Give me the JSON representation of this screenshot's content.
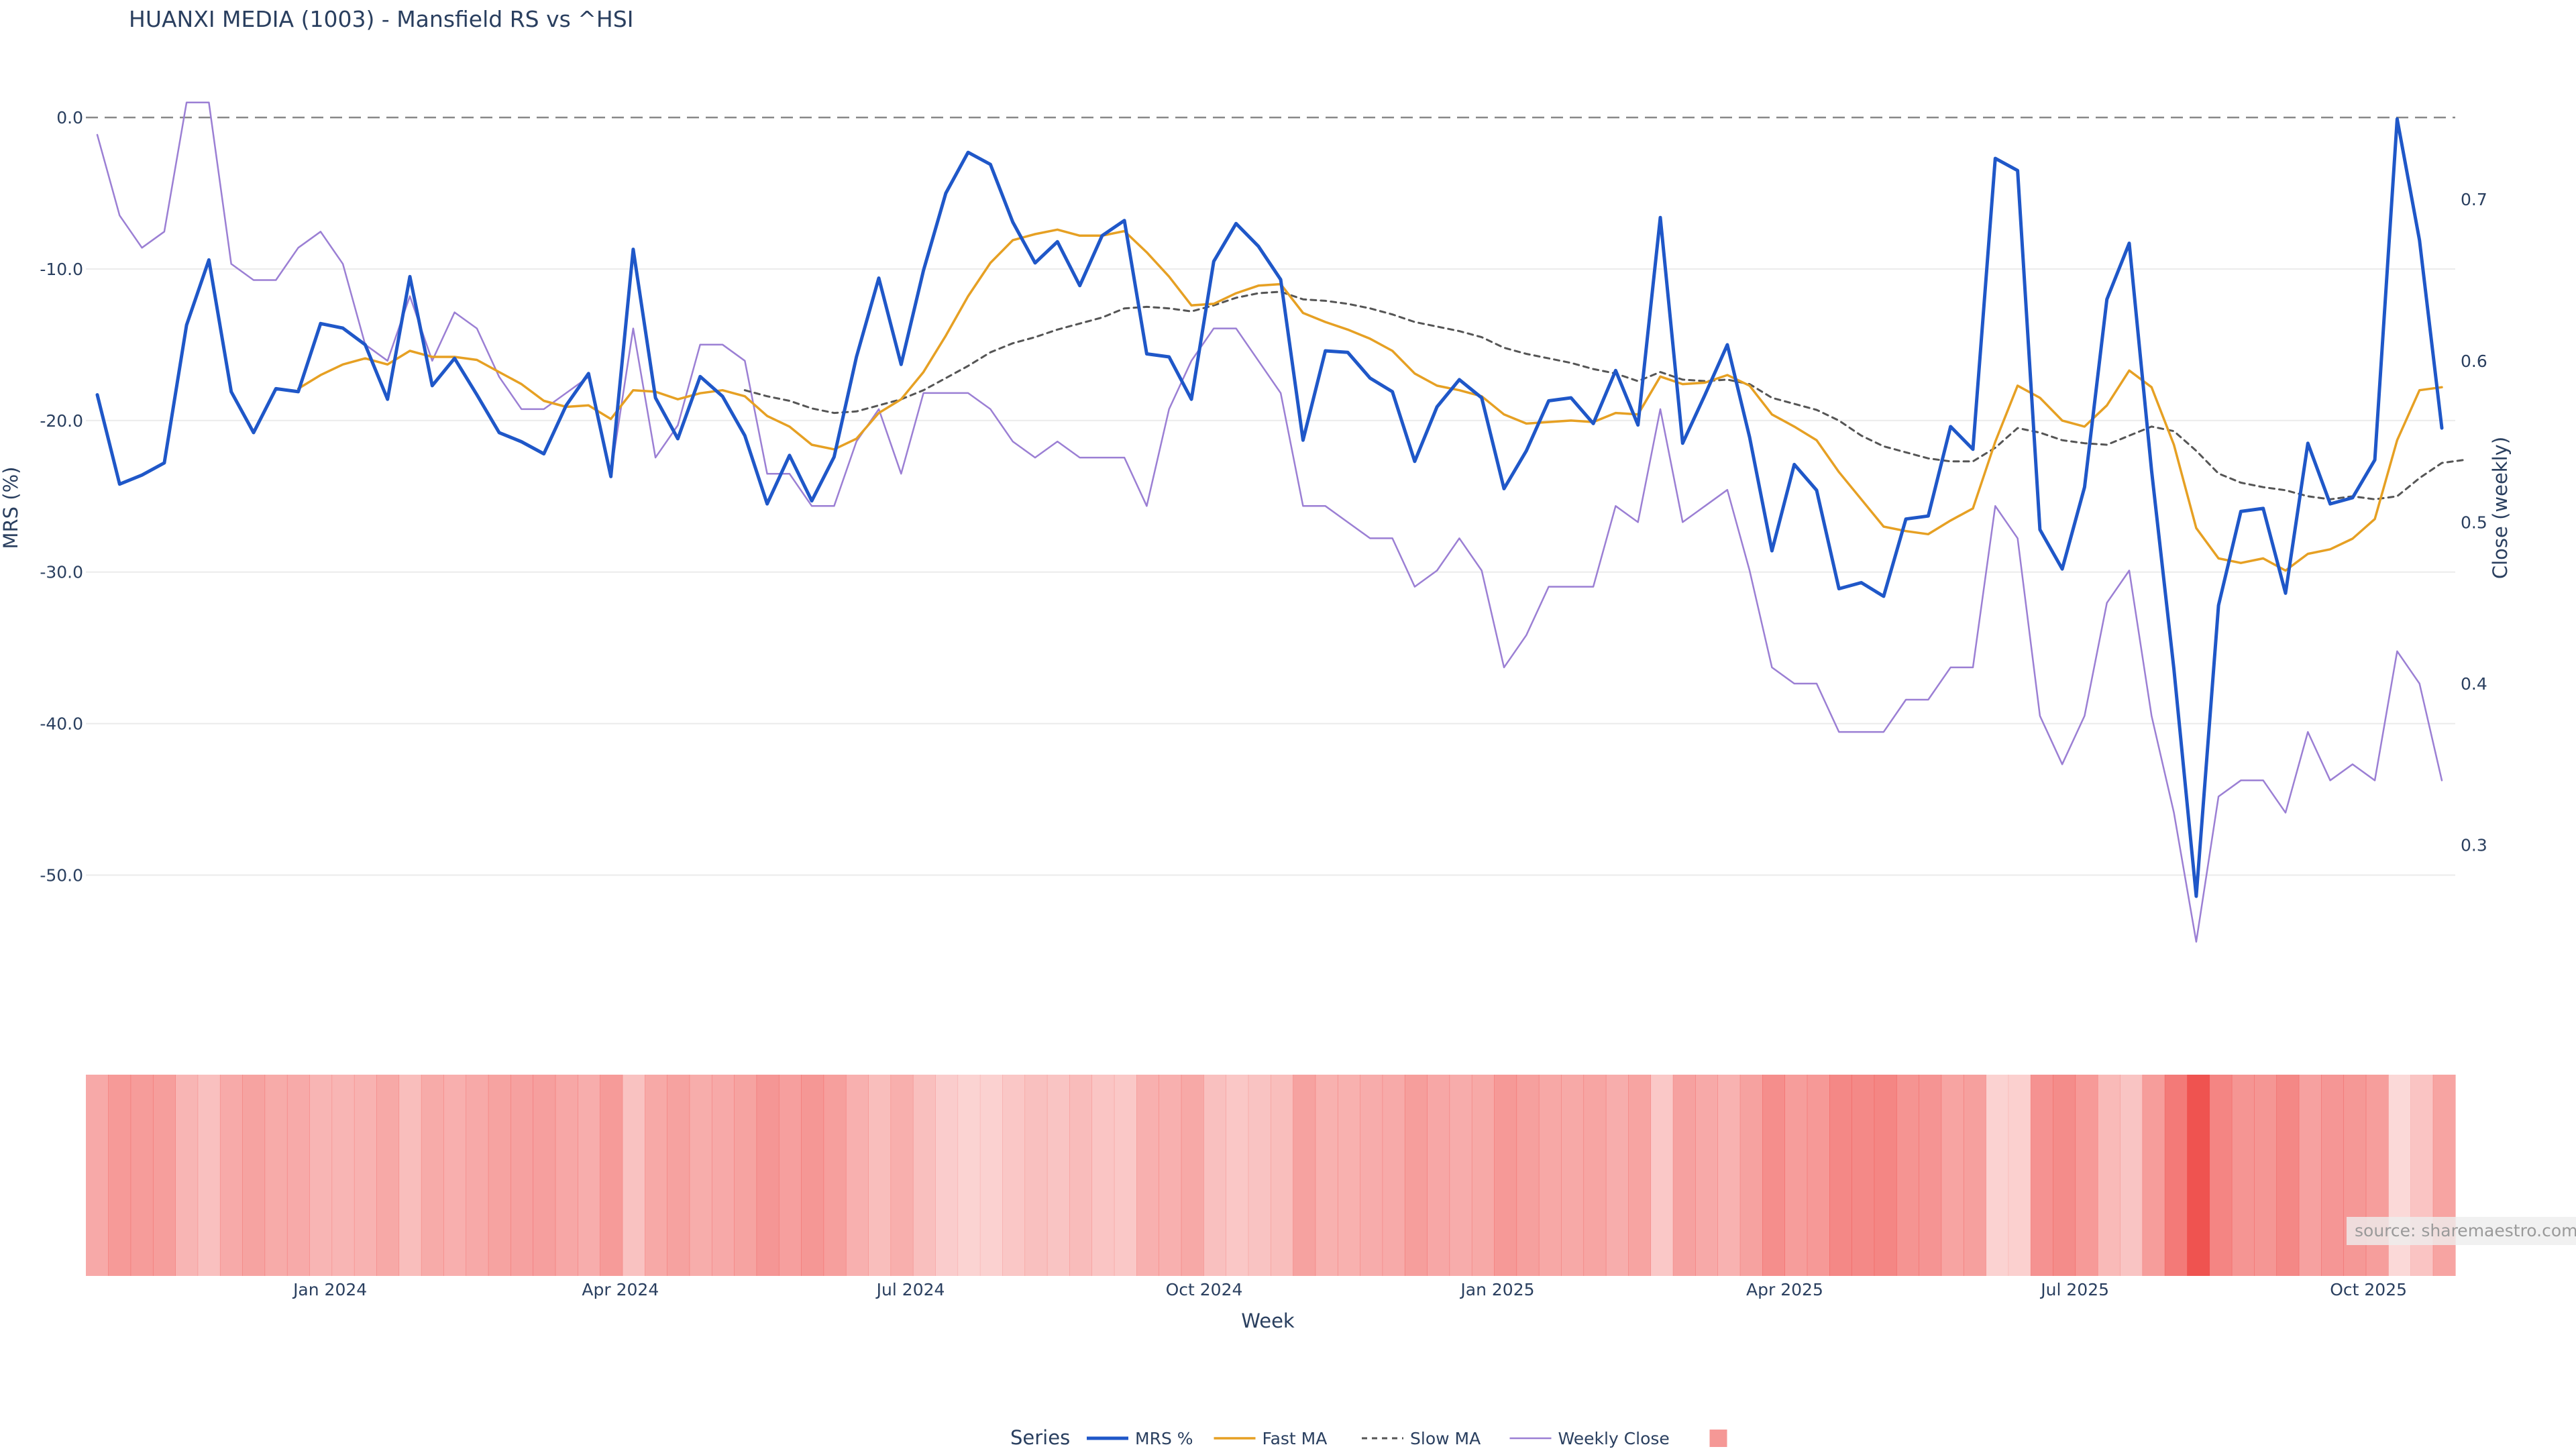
{
  "chart_data": {
    "type": "line",
    "title": "HUANXI MEDIA (1003) - Mansfield RS vs ^HSI",
    "xlabel": "Week",
    "ylabel_left": "MRS (%)",
    "ylabel_right": "Close (weekly)",
    "x_start": "2023-10-20",
    "x_tick_labels": [
      "Jan 2024",
      "Apr 2024",
      "Jul 2024",
      "Oct 2024",
      "Jan 2025",
      "Apr 2025",
      "Jul 2025",
      "Oct 2025"
    ],
    "y_left_ticks": [
      "0.0",
      "-10.0",
      "-20.0",
      "-30.0",
      "-40.0",
      "-50.0"
    ],
    "y_right_ticks": [
      "0.7",
      "0.6",
      "0.5",
      "0.4",
      "0.3"
    ],
    "y_left_range": [
      -56,
      1.2
    ],
    "y_right_range": [
      0.225,
      0.762
    ],
    "reference_line": 0.0,
    "series": [
      {
        "name": "MRS %",
        "color": "#1f57c8",
        "axis": "left",
        "values": [
          -18.3,
          -24.2,
          -23.6,
          -22.8,
          -13.7,
          -9.4,
          -18.1,
          -20.8,
          -17.9,
          -18.1,
          -13.6,
          -13.9,
          -15.0,
          -18.6,
          -10.5,
          -17.7,
          -15.9,
          -18.3,
          -20.8,
          -21.4,
          -22.2,
          -19.0,
          -16.9,
          -23.7,
          -8.7,
          -18.5,
          -21.2,
          -17.1,
          -18.4,
          -21.0,
          -25.5,
          -22.3,
          -25.3,
          -22.4,
          -15.8,
          -10.6,
          -16.3,
          -10.1,
          -5.0,
          -2.3,
          -3.1,
          -6.9,
          -9.6,
          -8.2,
          -11.1,
          -7.8,
          -6.8,
          -15.6,
          -15.8,
          -18.6,
          -9.5,
          -7.0,
          -8.5,
          -10.7,
          -21.3,
          -15.4,
          -15.5,
          -17.2,
          -18.1,
          -22.7,
          -19.1,
          -17.3,
          -18.5,
          -24.5,
          -22.0,
          -18.7,
          -18.5,
          -20.2,
          -16.7,
          -20.3,
          -6.6,
          -21.5,
          -18.3,
          -15.0,
          -21.1,
          -28.6,
          -22.9,
          -24.6,
          -31.1,
          -30.7,
          -31.6,
          -26.5,
          -26.3,
          -20.4,
          -21.9,
          -2.7,
          -3.5,
          -27.2,
          -29.8,
          -24.4,
          -12.0,
          -8.3,
          -23.3,
          -36.4,
          -51.4,
          -32.2,
          -26.0,
          -25.8,
          -31.4,
          -21.5,
          -25.5,
          -25.1,
          -22.6,
          -0.1,
          -8.1,
          -20.5
        ]
      },
      {
        "name": "Fast MA",
        "color": "#e6a023",
        "axis": "left",
        "start_index": 9,
        "values": [
          -17.9,
          -17.0,
          -16.3,
          -15.9,
          -16.3,
          -15.4,
          -15.8,
          -15.8,
          -16.0,
          -16.8,
          -17.6,
          -18.7,
          -19.1,
          -19.0,
          -19.9,
          -18.0,
          -18.1,
          -18.6,
          -18.2,
          -18.0,
          -18.4,
          -19.7,
          -20.4,
          -21.6,
          -21.9,
          -21.2,
          -19.5,
          -18.6,
          -16.8,
          -14.4,
          -11.8,
          -9.6,
          -8.1,
          -7.7,
          -7.4,
          -7.8,
          -7.8,
          -7.5,
          -8.9,
          -10.5,
          -12.4,
          -12.3,
          -11.6,
          -11.1,
          -11.0,
          -12.9,
          -13.5,
          -14.0,
          -14.6,
          -15.4,
          -16.9,
          -17.7,
          -18.0,
          -18.4,
          -19.6,
          -20.2,
          -20.1,
          -20.0,
          -20.1,
          -19.5,
          -19.6,
          -17.1,
          -17.6,
          -17.5,
          -17.0,
          -17.7,
          -19.6,
          -20.4,
          -21.3,
          -23.4,
          -25.2,
          -27.0,
          -27.3,
          -27.5,
          -26.6,
          -25.8,
          -21.4,
          -17.7,
          -18.5,
          -20.0,
          -20.4,
          -19.0,
          -16.7,
          -17.8,
          -21.6,
          -27.1,
          -29.1,
          -29.4,
          -29.1,
          -29.9,
          -28.8,
          -28.5,
          -27.8,
          -26.5,
          -21.3,
          -18.0,
          -17.8
        ]
      },
      {
        "name": "Slow MA",
        "color": "#555555",
        "axis": "left",
        "dash": true,
        "start_index": 29,
        "values": [
          -18.0,
          -18.4,
          -18.7,
          -19.2,
          -19.5,
          -19.4,
          -19.0,
          -18.6,
          -18.0,
          -17.2,
          -16.4,
          -15.5,
          -14.9,
          -14.5,
          -14.0,
          -13.6,
          -13.2,
          -12.6,
          -12.5,
          -12.6,
          -12.8,
          -12.4,
          -11.9,
          -11.6,
          -11.5,
          -12.0,
          -12.1,
          -12.3,
          -12.6,
          -13.0,
          -13.5,
          -13.8,
          -14.1,
          -14.5,
          -15.2,
          -15.6,
          -15.9,
          -16.2,
          -16.6,
          -16.9,
          -17.4,
          -16.8,
          -17.3,
          -17.4,
          -17.3,
          -17.6,
          -18.5,
          -18.9,
          -19.3,
          -20.0,
          -21.0,
          -21.7,
          -22.1,
          -22.5,
          -22.7,
          -22.7,
          -21.8,
          -20.5,
          -20.8,
          -21.3,
          -21.5,
          -21.6,
          -21.0,
          -20.4,
          -20.7,
          -22.0,
          -23.5,
          -24.1,
          -24.4,
          -24.6,
          -25.0,
          -25.2,
          -25.0,
          -25.2,
          -25.0,
          -23.8,
          -22.8,
          -22.6
        ]
      },
      {
        "name": "Weekly Close",
        "color": "#9b7fd4",
        "axis": "right",
        "values": [
          0.74,
          0.69,
          0.67,
          0.68,
          0.76,
          0.76,
          0.66,
          0.65,
          0.65,
          0.67,
          0.68,
          0.66,
          0.61,
          0.6,
          0.64,
          0.6,
          0.63,
          0.62,
          0.59,
          0.57,
          0.57,
          0.58,
          0.59,
          0.53,
          0.62,
          0.54,
          0.56,
          0.61,
          0.61,
          0.6,
          0.53,
          0.53,
          0.51,
          0.51,
          0.55,
          0.57,
          0.53,
          0.58,
          0.58,
          0.58,
          0.57,
          0.55,
          0.54,
          0.55,
          0.54,
          0.54,
          0.54,
          0.51,
          0.57,
          0.6,
          0.62,
          0.62,
          0.6,
          0.58,
          0.51,
          0.51,
          0.5,
          0.49,
          0.49,
          0.46,
          0.47,
          0.49,
          0.47,
          0.41,
          0.43,
          0.46,
          0.46,
          0.46,
          0.51,
          0.5,
          0.57,
          0.5,
          0.51,
          0.52,
          0.47,
          0.41,
          0.4,
          0.4,
          0.37,
          0.37,
          0.37,
          0.39,
          0.39,
          0.41,
          0.41,
          0.51,
          0.49,
          0.38,
          0.35,
          0.38,
          0.45,
          0.47,
          0.38,
          0.32,
          0.24,
          0.33,
          0.34,
          0.34,
          0.32,
          0.37,
          0.34,
          0.35,
          0.34,
          0.42,
          0.4,
          0.34
        ]
      }
    ],
    "heatmap_strip": {
      "description": "red intensity strip, one cell per week, darker = lower MRS",
      "base_color": "#ef5350",
      "intensity_source": "MRS %"
    },
    "legend": {
      "title": "Series",
      "placement": "bottom-center",
      "items": [
        "MRS %",
        "Fast MA",
        "Slow MA",
        "Weekly Close",
        ""
      ]
    },
    "source_label": "source: sharemaestro.com",
    "grid": true
  }
}
